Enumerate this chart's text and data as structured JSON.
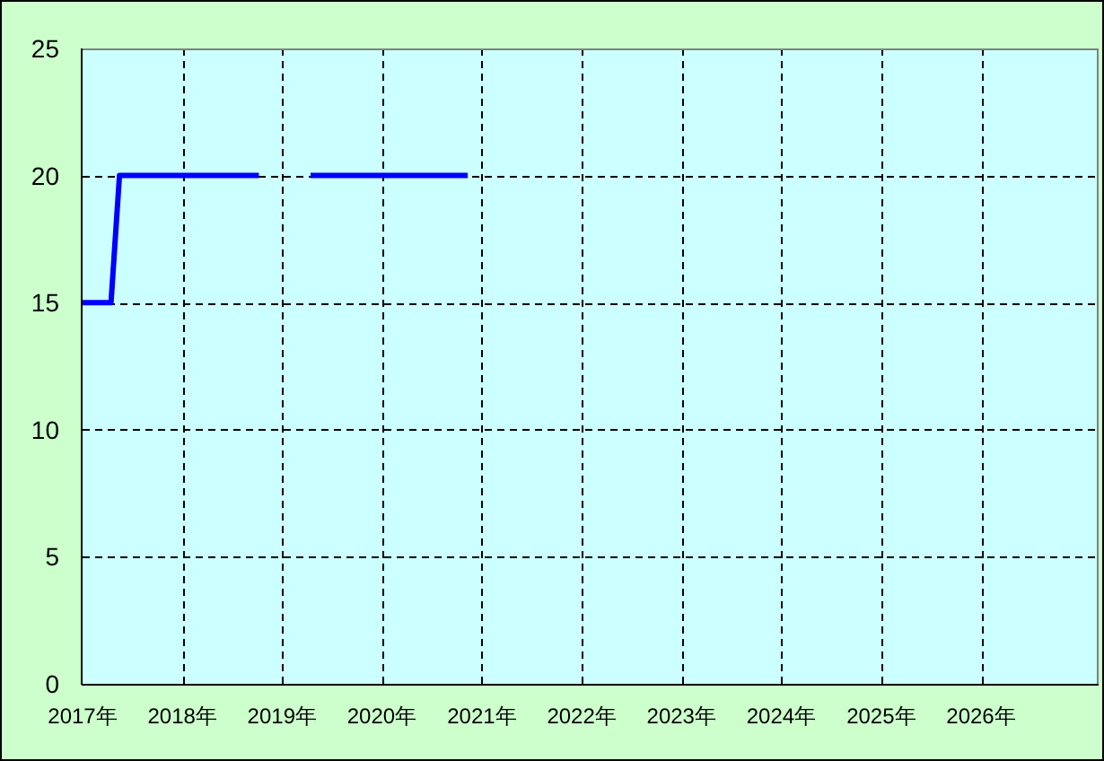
{
  "chart_data": {
    "type": "line",
    "series": [
      {
        "color": "#0000ff",
        "x": [
          "2017-01-01",
          "2017-04-15",
          "2017-05-16",
          "2018-10-08"
        ],
        "values": [
          15,
          15,
          20,
          20
        ]
      },
      {
        "color": "#0000ff",
        "x": [
          "2019-04-15",
          "2020-11-10"
        ],
        "values": [
          20,
          20
        ]
      }
    ],
    "xlim": [
      "2017-01-01",
      "2027-03-07"
    ],
    "xticks": [
      {
        "value": "2017",
        "label": "2017年"
      },
      {
        "value": "2018",
        "label": "2018年"
      },
      {
        "value": "2019",
        "label": "2019年"
      },
      {
        "value": "2020",
        "label": "2020年"
      },
      {
        "value": "2021",
        "label": "2021年"
      },
      {
        "value": "2022",
        "label": "2022年"
      },
      {
        "value": "2023",
        "label": "2023年"
      },
      {
        "value": "2024",
        "label": "2024年"
      },
      {
        "value": "2025",
        "label": "2025年"
      },
      {
        "value": "2026",
        "label": "2026年"
      }
    ],
    "ylim": [
      0,
      25
    ],
    "yticks": [
      0,
      5,
      10,
      15,
      20,
      25
    ],
    "grid": true
  }
}
